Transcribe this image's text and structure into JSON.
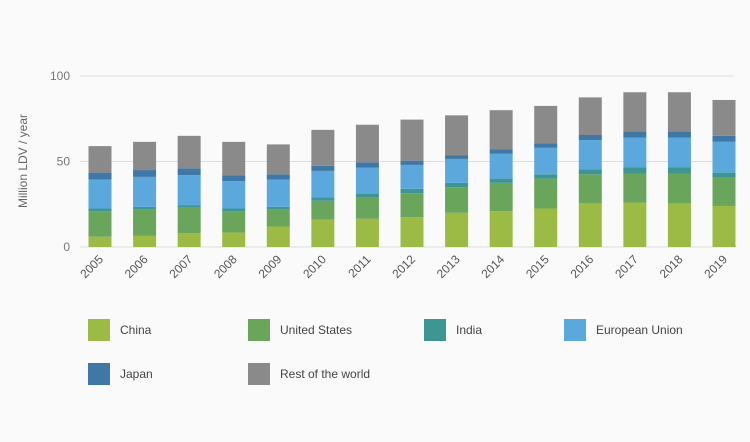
{
  "chart_data": {
    "type": "bar",
    "stacked": true,
    "title": "",
    "xlabel": "",
    "ylabel": "Million LDV / year",
    "ylim": [
      0,
      100
    ],
    "yticks": [
      "0",
      "50",
      "100"
    ],
    "grid": true,
    "categories": [
      "2005",
      "2006",
      "2007",
      "2008",
      "2009",
      "2010",
      "2011",
      "2012",
      "2013",
      "2014",
      "2015",
      "2016",
      "2017",
      "2018",
      "2019"
    ],
    "series": [
      {
        "name": "China",
        "color": "#9cbb45",
        "values": [
          6,
          6.5,
          8,
          8.5,
          12,
          16,
          16.5,
          17.5,
          20,
          21,
          22.5,
          25.5,
          26,
          25.5,
          24
        ]
      },
      {
        "name": "United States",
        "color": "#6aa55c",
        "values": [
          15,
          15.5,
          15,
          12.5,
          10,
          11,
          12.5,
          14,
          15,
          16.5,
          17.5,
          17,
          17,
          17.5,
          16.5
        ]
      },
      {
        "name": "India",
        "color": "#3e9692",
        "values": [
          1.5,
          1.5,
          1.5,
          1.5,
          1.5,
          2,
          2,
          2.5,
          2.5,
          2.5,
          2.5,
          3,
          3.5,
          3.5,
          3
        ]
      },
      {
        "name": "European Union",
        "color": "#5aa8dc",
        "values": [
          17,
          17.5,
          17.5,
          16,
          16,
          15.5,
          15.5,
          14,
          14,
          14.5,
          15.5,
          17,
          17.5,
          17.5,
          18
        ]
      },
      {
        "name": "Japan",
        "color": "#3f77a6",
        "values": [
          4,
          4,
          4,
          3.5,
          3,
          3,
          3,
          2.5,
          2,
          2.5,
          2.5,
          3,
          3.5,
          3.5,
          3.5
        ]
      },
      {
        "name": "Rest of the world",
        "color": "#8a8a8a",
        "values": [
          15.5,
          16.5,
          19,
          19.5,
          17.5,
          21,
          22,
          24,
          23.5,
          23,
          22,
          22,
          23,
          23,
          21
        ]
      }
    ]
  }
}
